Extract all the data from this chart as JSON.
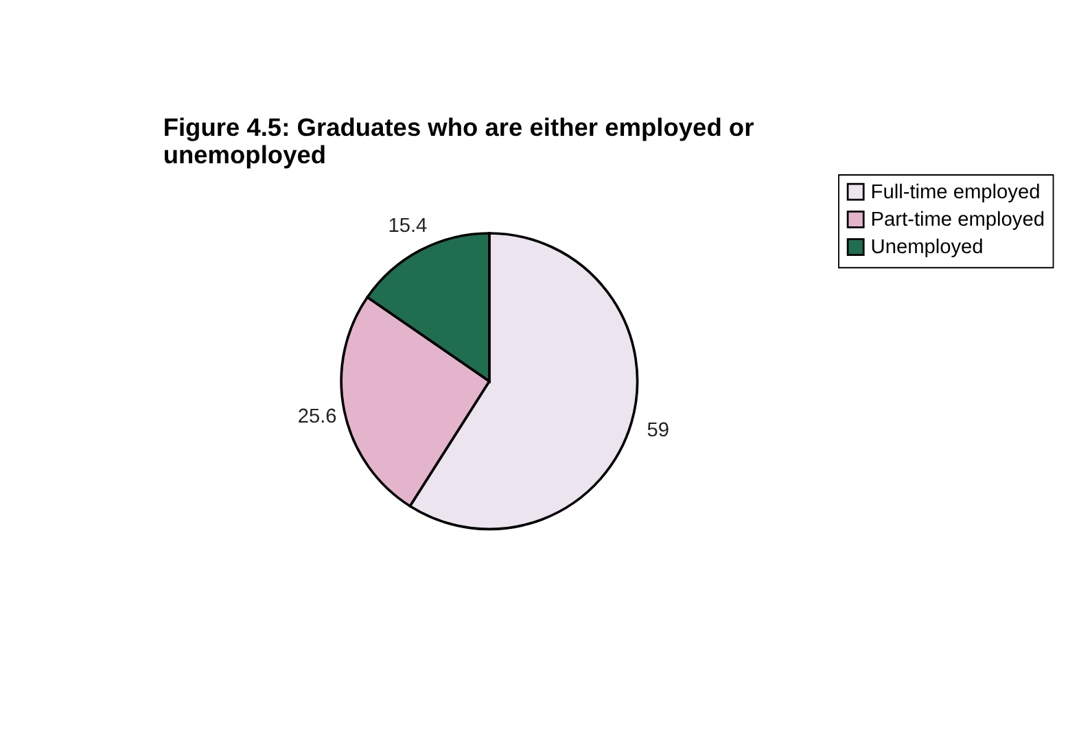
{
  "chart_data": {
    "type": "pie",
    "title": "Figure 4.5: Graduates who are either employed or unemoployed",
    "categories": [
      "Full-time employed",
      "Part-time employed",
      "Unemployed"
    ],
    "values": [
      59,
      25.6,
      15.4
    ],
    "colors": [
      "#ece4ee",
      "#e4b4cc",
      "#1f6e50"
    ],
    "data_labels": true,
    "legend": "right"
  }
}
